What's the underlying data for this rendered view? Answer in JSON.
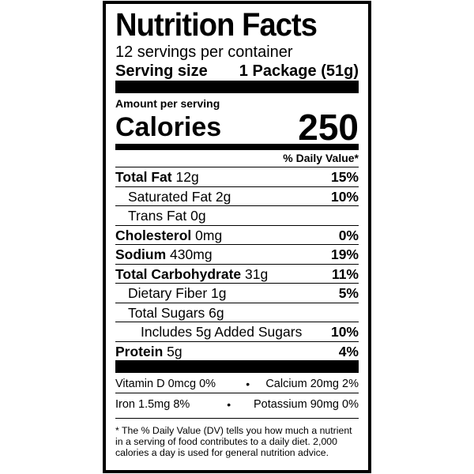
{
  "header": {
    "title": "Nutrition Facts",
    "servings": "12 servings per container",
    "serving_size_label": "Serving size",
    "serving_size": "1 Package (51g)"
  },
  "calories": {
    "amount_label": "Amount per serving",
    "label": "Calories",
    "value": "250"
  },
  "dv_header": "% Daily Value*",
  "nutrients": [
    {
      "name": "Total Fat",
      "amount": "12g",
      "dv": "15%",
      "bold": true,
      "indent": 0
    },
    {
      "name": "Saturated Fat",
      "amount": "2g",
      "dv": "10%",
      "bold": false,
      "indent": 1
    },
    {
      "name": "Trans Fat",
      "amount": "0g",
      "bold": false,
      "indent": 1
    },
    {
      "name": "Cholesterol",
      "amount": "0mg",
      "dv": "0%",
      "bold": true,
      "indent": 0
    },
    {
      "name": "Sodium",
      "amount": "430mg",
      "dv": "19%",
      "bold": true,
      "indent": 0
    },
    {
      "name": "Total Carbohydrate",
      "amount": "31g",
      "dv": "11%",
      "bold": true,
      "indent": 0
    },
    {
      "name": "Dietary Fiber",
      "amount": "1g",
      "dv": "5%",
      "bold": false,
      "indent": 1
    },
    {
      "name": "Total Sugars",
      "amount": "6g",
      "bold": false,
      "indent": 1
    },
    {
      "name": "Includes 5g Added Sugars",
      "dv": "10%",
      "bold": false,
      "indent": 2
    },
    {
      "name": "Protein",
      "amount": "5g",
      "dv": "4%",
      "bold": true,
      "indent": 0
    }
  ],
  "vitamins": [
    [
      "Vitamin D 0mcg 0%",
      "Calcium 20mg 2%"
    ],
    [
      "Iron 1.5mg 8%",
      "Potassium 90mg 0%"
    ]
  ],
  "footnote": "* The % Daily Value (DV) tells you how much a nutrient in a serving of food contributes to a daily diet. 2,000 calories a day is used for general nutrition advice."
}
